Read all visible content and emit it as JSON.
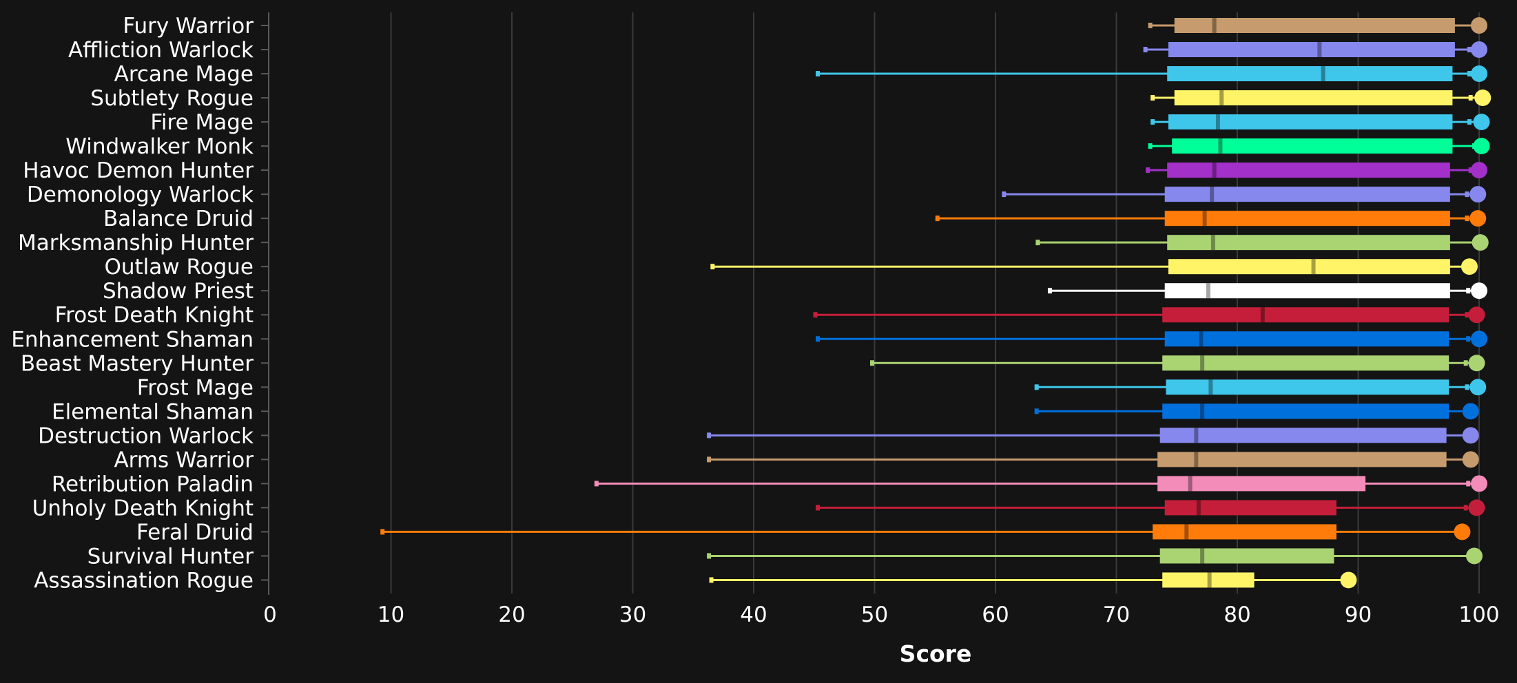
{
  "chart_data": {
    "type": "box",
    "xlabel": "Score",
    "xlim": [
      0,
      100
    ],
    "xticks": [
      0,
      10,
      20,
      30,
      40,
      50,
      60,
      70,
      80,
      90,
      100
    ],
    "grid": "vertical",
    "legend": "none",
    "categories": [
      {
        "name": "Fury Warrior",
        "color": "#c69b6d",
        "min": 72.8,
        "q1": 74.8,
        "median": 78.1,
        "q3": 98.0,
        "whisker_high": 99.8,
        "max": 100.0
      },
      {
        "name": "Affliction Warlock",
        "color": "#8788ee",
        "min": 72.4,
        "q1": 74.3,
        "median": 86.8,
        "q3": 98.0,
        "whisker_high": 99.2,
        "max": 100.0
      },
      {
        "name": "Arcane Mage",
        "color": "#3fc7eb",
        "min": 45.3,
        "q1": 74.2,
        "median": 87.1,
        "q3": 97.8,
        "whisker_high": 99.2,
        "max": 100.0
      },
      {
        "name": "Subtlety Rogue",
        "color": "#fff468",
        "min": 73.0,
        "q1": 74.8,
        "median": 78.7,
        "q3": 97.8,
        "whisker_high": 99.3,
        "max": 100.3
      },
      {
        "name": "Fire Mage",
        "color": "#3fc7eb",
        "min": 73.0,
        "q1": 74.3,
        "median": 78.4,
        "q3": 97.8,
        "whisker_high": 99.2,
        "max": 100.2
      },
      {
        "name": "Windwalker Monk",
        "color": "#00ff98",
        "min": 72.8,
        "q1": 74.6,
        "median": 78.6,
        "q3": 97.8,
        "whisker_high": 99.6,
        "max": 100.2
      },
      {
        "name": "Havoc Demon Hunter",
        "color": "#a330c9",
        "min": 72.6,
        "q1": 74.2,
        "median": 78.1,
        "q3": 97.6,
        "whisker_high": 99.3,
        "max": 100.0
      },
      {
        "name": "Demonology Warlock",
        "color": "#8788ee",
        "min": 60.7,
        "q1": 74.0,
        "median": 77.9,
        "q3": 97.6,
        "whisker_high": 99.0,
        "max": 99.9
      },
      {
        "name": "Balance Druid",
        "color": "#ff7c0a",
        "min": 55.2,
        "q1": 74.0,
        "median": 77.3,
        "q3": 97.6,
        "whisker_high": 99.0,
        "max": 99.9
      },
      {
        "name": "Marksmanship Hunter",
        "color": "#aad372",
        "min": 63.5,
        "q1": 74.2,
        "median": 78.0,
        "q3": 97.6,
        "whisker_high": 99.6,
        "max": 100.1
      },
      {
        "name": "Outlaw Rogue",
        "color": "#fff468",
        "min": 36.6,
        "q1": 74.3,
        "median": 86.3,
        "q3": 97.6,
        "whisker_high": 99.0,
        "max": 99.2
      },
      {
        "name": "Shadow Priest",
        "color": "#ffffff",
        "min": 64.5,
        "q1": 74.0,
        "median": 77.6,
        "q3": 97.6,
        "whisker_high": 99.1,
        "max": 100.0
      },
      {
        "name": "Frost Death Knight",
        "color": "#c41e3a",
        "min": 45.1,
        "q1": 73.8,
        "median": 82.1,
        "q3": 97.5,
        "whisker_high": 99.0,
        "max": 99.8
      },
      {
        "name": "Enhancement Shaman",
        "color": "#0070dd",
        "min": 45.3,
        "q1": 74.0,
        "median": 77.0,
        "q3": 97.5,
        "whisker_high": 99.1,
        "max": 100.0
      },
      {
        "name": "Beast Mastery Hunter",
        "color": "#aad372",
        "min": 49.8,
        "q1": 73.8,
        "median": 77.1,
        "q3": 97.5,
        "whisker_high": 98.9,
        "max": 99.8
      },
      {
        "name": "Frost Mage",
        "color": "#3fc7eb",
        "min": 63.4,
        "q1": 74.1,
        "median": 77.8,
        "q3": 97.5,
        "whisker_high": 99.0,
        "max": 99.9
      },
      {
        "name": "Elemental Shaman",
        "color": "#0070dd",
        "min": 63.4,
        "q1": 73.8,
        "median": 77.1,
        "q3": 97.5,
        "whisker_high": 99.0,
        "max": 99.3
      },
      {
        "name": "Destruction Warlock",
        "color": "#8788ee",
        "min": 36.3,
        "q1": 73.6,
        "median": 76.6,
        "q3": 97.3,
        "whisker_high": 98.9,
        "max": 99.3
      },
      {
        "name": "Arms Warrior",
        "color": "#c69b6d",
        "min": 36.3,
        "q1": 73.4,
        "median": 76.6,
        "q3": 97.3,
        "whisker_high": 98.9,
        "max": 99.3
      },
      {
        "name": "Retribution Paladin",
        "color": "#f48cba",
        "min": 27.0,
        "q1": 73.4,
        "median": 76.1,
        "q3": 90.6,
        "whisker_high": 99.1,
        "max": 100.0
      },
      {
        "name": "Unholy Death Knight",
        "color": "#c41e3a",
        "min": 45.3,
        "q1": 74.0,
        "median": 76.8,
        "q3": 88.2,
        "whisker_high": 98.9,
        "max": 99.8
      },
      {
        "name": "Feral Druid",
        "color": "#ff7c0a",
        "min": 9.3,
        "q1": 73.0,
        "median": 75.8,
        "q3": 88.2,
        "whisker_high": 98.6,
        "max": 98.6
      },
      {
        "name": "Survival Hunter",
        "color": "#aad372",
        "min": 36.3,
        "q1": 73.6,
        "median": 77.1,
        "q3": 88.0,
        "whisker_high": 99.6,
        "max": 99.6
      },
      {
        "name": "Assassination Rogue",
        "color": "#fff468",
        "min": 36.5,
        "q1": 73.8,
        "median": 77.7,
        "q3": 81.4,
        "whisker_high": 89.2,
        "max": 89.2
      }
    ]
  }
}
